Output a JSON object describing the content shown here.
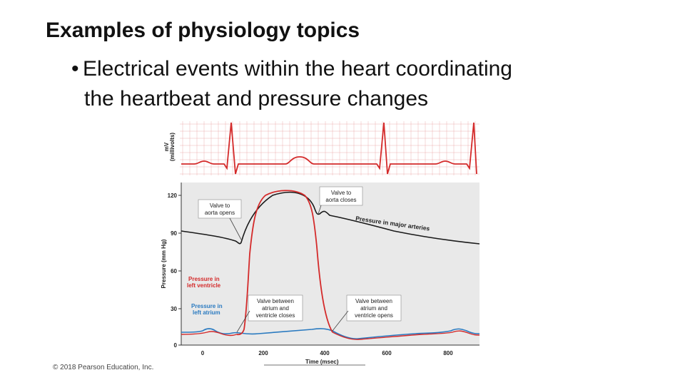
{
  "title": "Examples of physiology topics",
  "bullet": {
    "marker": "•",
    "line1": "Electrical events within the heart coordinating",
    "line2": "the heartbeat and pressure changes"
  },
  "copyright": "© 2018 Pearson Education, Inc.",
  "figure": {
    "ecg_ylabel_1": "mV",
    "ecg_ylabel_2": "(millivolts)",
    "pressure_ylabel": "Pressure (mm Hg)",
    "xlabel": "Time (msec)",
    "y_ticks": [
      "120",
      "90",
      "60",
      "30",
      "0"
    ],
    "x_ticks": [
      "0",
      "200",
      "400",
      "600",
      "800"
    ],
    "callouts": {
      "valve_aorta_opens_1": "Valve to",
      "valve_aorta_opens_2": "aorta opens",
      "valve_aorta_closes_1": "Valve to",
      "valve_aorta_closes_2": "aorta closes",
      "valve_av_closes_1": "Valve between",
      "valve_av_closes_2": "atrium and",
      "valve_av_closes_3": "ventricle closes",
      "valve_av_opens_1": "Valve between",
      "valve_av_opens_2": "atrium and",
      "valve_av_opens_3": "ventricle opens"
    },
    "curve_labels": {
      "major_arteries": "Pressure in major arteries",
      "left_ventricle_1": "Pressure in",
      "left_ventricle_2": "left ventricle",
      "left_atrium_1": "Pressure in",
      "left_atrium_2": "left atrium"
    },
    "colors": {
      "ventricle": "#d42a2a",
      "atrium": "#2a7ac0",
      "artery": "#1a1a1a",
      "grid": "#e8a0a0",
      "panel_bg": "#e9e9e9"
    }
  }
}
